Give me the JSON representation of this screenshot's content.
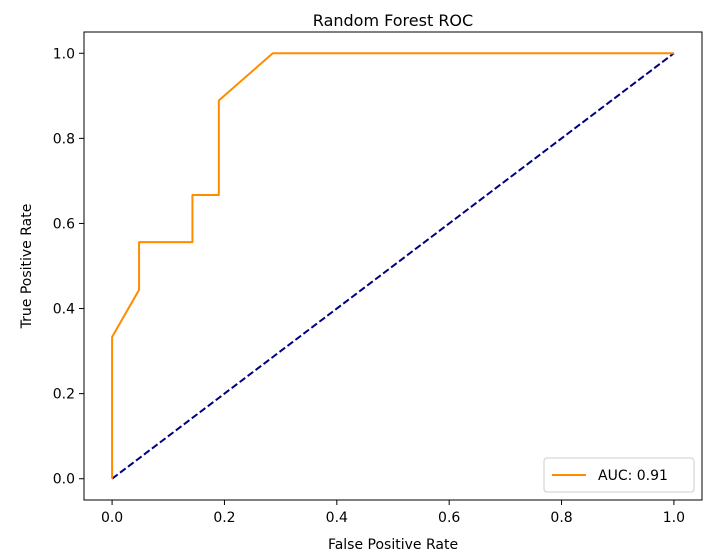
{
  "chart_data": {
    "type": "line",
    "title": "Random Forest ROC",
    "xlabel": "False Positive Rate",
    "ylabel": "True Positive Rate",
    "xlim": [
      -0.05,
      1.05
    ],
    "ylim": [
      -0.05,
      1.05
    ],
    "xticks": [
      "0.0",
      "0.2",
      "0.4",
      "0.6",
      "0.8",
      "1.0"
    ],
    "yticks": [
      "0.0",
      "0.2",
      "0.4",
      "0.6",
      "0.8",
      "1.0"
    ],
    "grid": false,
    "legend_position": "lower right",
    "series": [
      {
        "name": "AUC: 0.91",
        "color": "#ff8c00",
        "style": "solid",
        "x": [
          0.0,
          0.0,
          0.048,
          0.048,
          0.143,
          0.143,
          0.19,
          0.19,
          0.286,
          1.0
        ],
        "y": [
          0.0,
          0.333,
          0.444,
          0.556,
          0.556,
          0.667,
          0.667,
          0.889,
          1.0,
          1.0
        ]
      },
      {
        "color": "#000080",
        "style": "dashed",
        "x": [
          0.0,
          1.0
        ],
        "y": [
          0.0,
          1.0
        ]
      }
    ]
  }
}
